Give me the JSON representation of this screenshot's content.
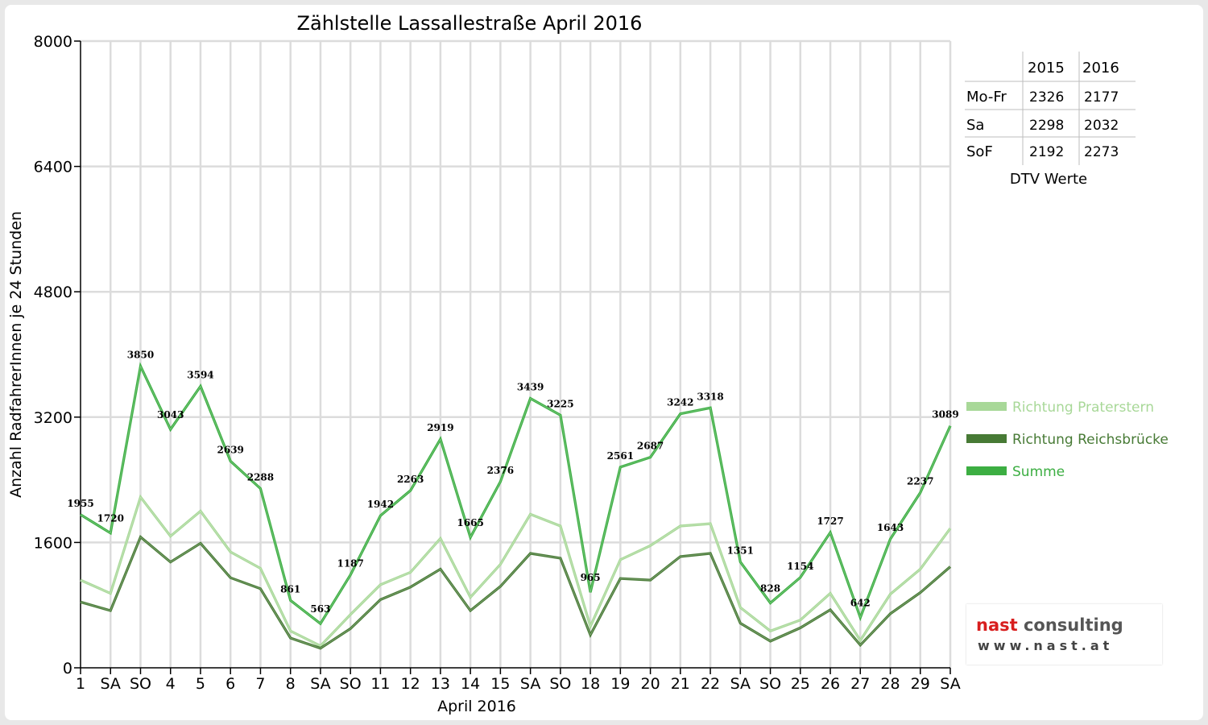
{
  "chart_data": {
    "type": "line",
    "title": "Zählstelle Lassallestraße April 2016",
    "xlabel": "April 2016",
    "ylabel": "Anzahl RadfahrerInnen je 24 Stunden",
    "ylim": [
      0,
      8000
    ],
    "yticks": [
      0,
      1600,
      3200,
      4800,
      6400,
      8000
    ],
    "grid": true,
    "legend_position": "right",
    "categories": [
      "1",
      "SA",
      "SO",
      "4",
      "5",
      "6",
      "7",
      "8",
      "SA",
      "SO",
      "11",
      "12",
      "13",
      "14",
      "15",
      "SA",
      "SO",
      "18",
      "19",
      "20",
      "21",
      "22",
      "SA",
      "SO",
      "25",
      "26",
      "27",
      "28",
      "29",
      "SA"
    ],
    "sunday_color": "#ee0000",
    "series": [
      {
        "name": "Richtung Praterstern",
        "color": "#a8d898",
        "values": [
          1120,
          950,
          2180,
          1680,
          2000,
          1480,
          1270,
          470,
          280,
          680,
          1060,
          1220,
          1650,
          900,
          1320,
          1960,
          1810,
          530,
          1380,
          1560,
          1810,
          1840,
          770,
          470,
          610,
          950,
          350,
          940,
          1260,
          1780
        ]
      },
      {
        "name": "Richtung Reichsbrücke",
        "color": "#477a35",
        "values": [
          840,
          730,
          1670,
          1350,
          1590,
          1150,
          1010,
          380,
          250,
          500,
          870,
          1030,
          1260,
          730,
          1040,
          1460,
          1400,
          420,
          1140,
          1120,
          1420,
          1460,
          570,
          340,
          510,
          740,
          290,
          690,
          960,
          1290
        ]
      },
      {
        "name": "Summe",
        "color": "#3cae42",
        "values": [
          1955,
          1720,
          3850,
          3043,
          3594,
          2639,
          2288,
          861,
          563,
          1187,
          1942,
          2263,
          2919,
          1665,
          2376,
          3439,
          3225,
          965,
          2561,
          2687,
          3242,
          3318,
          1351,
          828,
          1154,
          1727,
          642,
          1643,
          2237,
          3089
        ],
        "data_labels": [
          "1955",
          "1720",
          "3850",
          "3043",
          "3594",
          "2639",
          "2288",
          "861",
          "563",
          "1187",
          "1942",
          "2263",
          "2919",
          "1665",
          "2376",
          "3439",
          "3225",
          "965",
          "2561",
          "2687",
          "3242",
          "3318",
          "1351",
          "828",
          "1154",
          "1727",
          "642",
          "1643",
          "2237",
          "3089"
        ]
      }
    ]
  },
  "dtv_table": {
    "headers": [
      "",
      "2015",
      "2016"
    ],
    "rows": [
      {
        "label": "Mo-Fr",
        "v2015": "2326",
        "v2016": "2177"
      },
      {
        "label": "Sa",
        "v2015": "2298",
        "v2016": "2032"
      },
      {
        "label": "SoF",
        "v2015": "2192",
        "v2016": "2273"
      }
    ],
    "caption": "DTV Werte"
  },
  "logo": {
    "name_part1": "nast",
    "name_part2": " consulting",
    "url": "www.nast.at",
    "name_color": "#d81e1e"
  }
}
